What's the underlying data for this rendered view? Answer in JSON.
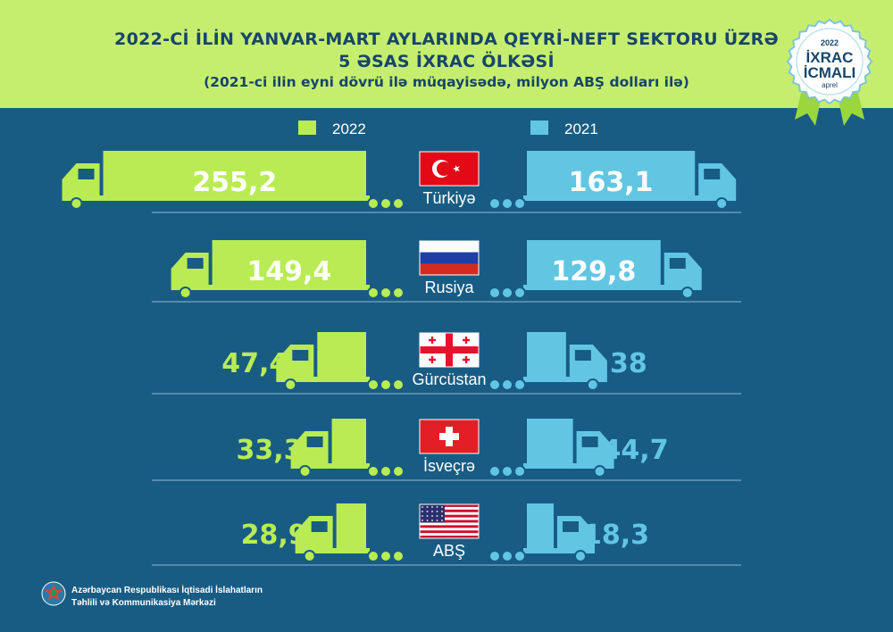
{
  "header": {
    "title_line1": "2022-Cİ İLİN YANVAR-MART AYLARINDA QEYRİ-NEFT SEKTORU ÜZRƏ",
    "title_line2": "5 ƏSAS İXRAC ÖLKƏSİ",
    "subtitle": "(2021-ci ilin eyni dövrü ilə müqayisədə, milyon ABŞ dolları ilə)"
  },
  "badge": {
    "year": "2022",
    "line1": "İXRAC",
    "line2": "İCMALI",
    "month": "aprel"
  },
  "colors": {
    "background": "#185c84",
    "header": "#c6ee6e",
    "series_2022": "#b8ec52",
    "series_2021": "#62c6e2",
    "title_text": "#17456b"
  },
  "chart_data": {
    "type": "bar",
    "orientation": "horizontal-mirrored",
    "categories": [
      "Türkiyə",
      "Rusiya",
      "Gürcüstan",
      "İsveçrə",
      "ABŞ"
    ],
    "series": [
      {
        "name": "2022",
        "values": [
          255.2,
          149.4,
          47.4,
          33.3,
          28.9
        ],
        "labels": [
          "255,2",
          "149,4",
          "47,4",
          "33,3",
          "28,9"
        ]
      },
      {
        "name": "2021",
        "values": [
          163.1,
          129.8,
          38,
          44.7,
          18.3
        ],
        "labels": [
          "163,1",
          "129,8",
          "38",
          "44,7",
          "18,3"
        ]
      }
    ],
    "flags": [
      "turkey-flag",
      "russia-flag",
      "georgia-flag",
      "switzerland-flag",
      "usa-flag"
    ],
    "unit": "milyon ABŞ dolları",
    "legend_position": "top"
  },
  "footer": {
    "org_line1": "Azərbaycan Respublikası İqtisadi İslahatların",
    "org_line2": "Təhlili və Kommunikasiya Mərkəzi",
    "logo_icon": "emblem-icon"
  }
}
